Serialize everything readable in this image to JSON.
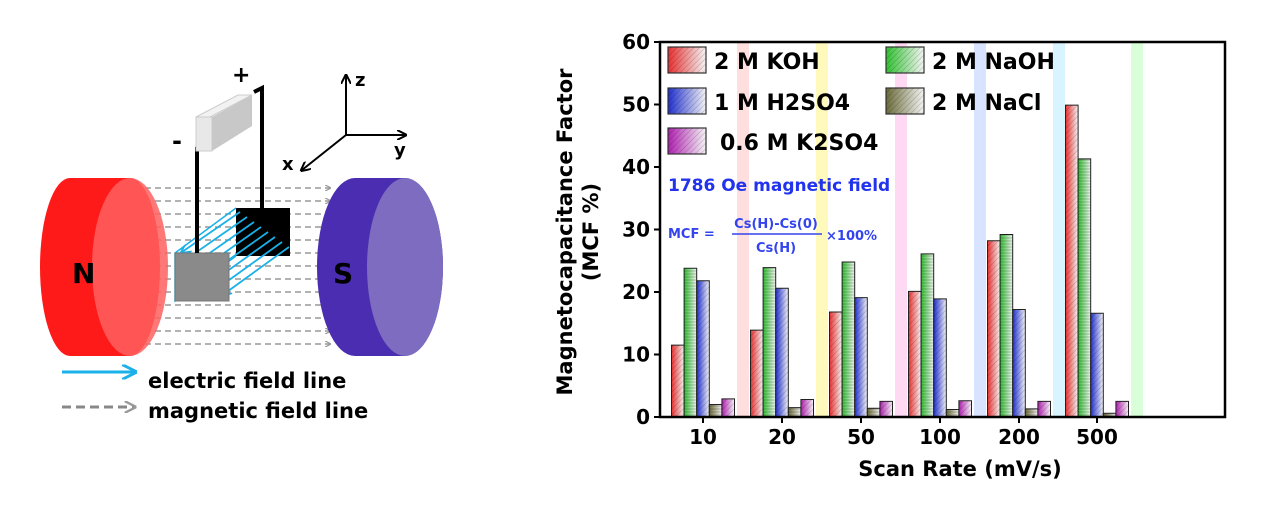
{
  "diagram": {
    "north_label": "N",
    "south_label": "S",
    "plus_label": "+",
    "minus_label": "-",
    "axes": {
      "z": "z",
      "y": "y",
      "x": "x"
    },
    "legend": {
      "electric": "electric field line",
      "magnetic": "magnetic field line"
    },
    "colors": {
      "north": "#ff1a1a",
      "south": "#4a2db0",
      "electric": "#1ab0e8",
      "magnetic": "#888888"
    }
  },
  "chart_data": {
    "type": "bar",
    "title": "",
    "xlabel": "Scan Rate (mV/s)",
    "ylabel_line1": "Magnetocapacitance Factor",
    "ylabel_line2": "(MCF %)",
    "ylim": [
      0,
      60
    ],
    "yticks": [
      "0",
      "10",
      "20",
      "30",
      "40",
      "50",
      "60"
    ],
    "categories": [
      "10",
      "20",
      "50",
      "100",
      "200",
      "500"
    ],
    "legend_position": "top-left",
    "grid": false,
    "annotation": "1786 Oe magnetic field",
    "formula": {
      "lhs": "MCF =",
      "numerator": "Cs(H)-Cs(0)",
      "denominator": "Cs(H)",
      "factor": "×100%"
    },
    "series": [
      {
        "name": "2 M KOH",
        "color": "#e83030",
        "values": [
          11.5,
          13.9,
          16.8,
          20.1,
          28.2,
          49.9
        ]
      },
      {
        "name": "2 M NaOH",
        "color": "#30c030",
        "values": [
          23.8,
          23.9,
          24.8,
          26.1,
          29.2,
          41.3
        ]
      },
      {
        "name": "1 M H2SO4",
        "color": "#2030d0",
        "values": [
          21.8,
          20.6,
          19.1,
          18.9,
          17.2,
          16.6
        ]
      },
      {
        "name": "2 M NaCl",
        "color": "#6b6b3a",
        "values": [
          2.0,
          1.5,
          1.4,
          1.2,
          1.3,
          0.6
        ]
      },
      {
        "name": "0.6 M K2SO4",
        "color": "#b020b0",
        "values": [
          2.9,
          2.8,
          2.5,
          2.6,
          2.5,
          2.5
        ]
      }
    ]
  }
}
